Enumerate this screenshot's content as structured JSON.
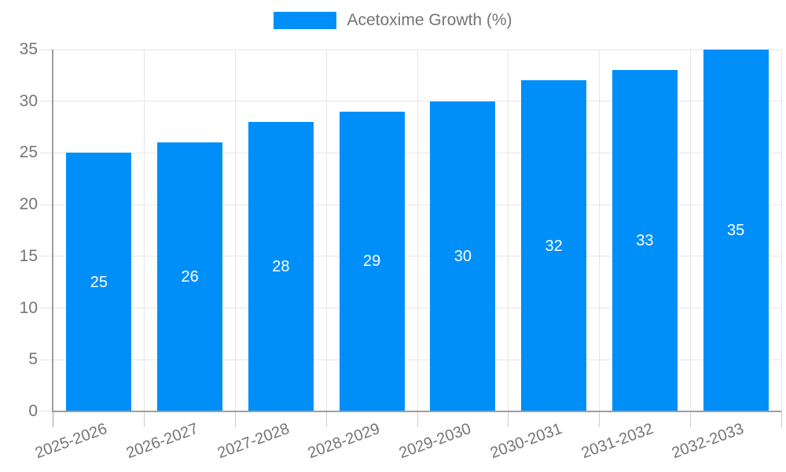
{
  "legend": {
    "label": "Acetoxime Growth (%)"
  },
  "chart_data": {
    "type": "bar",
    "title": "",
    "legend": "Acetoxime Growth (%)",
    "legend_position": "top-center",
    "categories": [
      "2025-2026",
      "2026-2027",
      "2027-2028",
      "2028-2029",
      "2029-2030",
      "2030-2031",
      "2031-2032",
      "2032-2033"
    ],
    "values": [
      25,
      26,
      28,
      29,
      30,
      32,
      33,
      35
    ],
    "xlabel": "",
    "ylabel": "",
    "ylim": [
      0,
      35
    ],
    "yticks": [
      0,
      5,
      10,
      15,
      20,
      25,
      30,
      35
    ],
    "grid": true,
    "x_label_rotation_deg": -20,
    "value_label_position": "inside-center"
  },
  "colors": {
    "bar": "#008ff8",
    "grid": "#e6e6e6",
    "axis": "#9e9e9e",
    "tick": "#cccccc",
    "text": "#757575",
    "value_label": "#ffffff",
    "background": "#ffffff"
  }
}
